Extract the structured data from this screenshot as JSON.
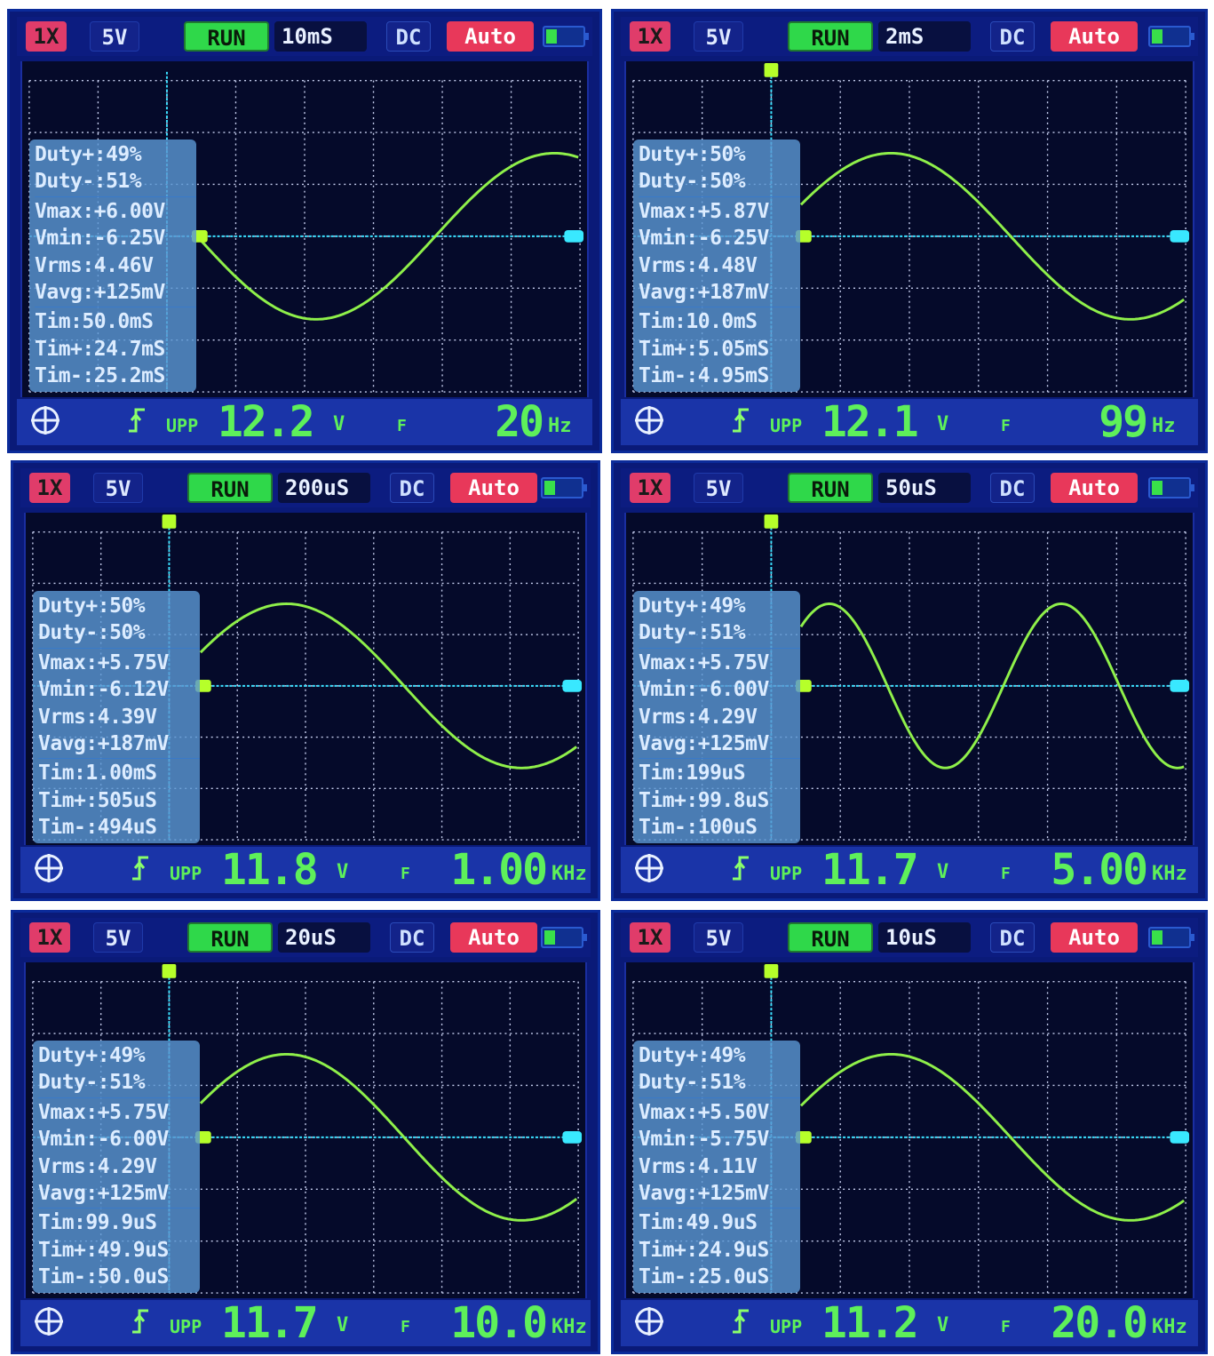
{
  "colors": {
    "trace": "#8ff04a",
    "grid": "#c8d0f0",
    "crosshair": "#39e0ff",
    "marker_left": "#b6ff2a",
    "marker_right": "#39e8ff",
    "top_marker": "#b6ff2a"
  },
  "icons": {
    "position": "crosshair-target-icon",
    "trigger": "rising-edge-trigger-icon",
    "battery": "battery-icon"
  },
  "screens": [
    {
      "probe": "1X",
      "volts_div": "5V",
      "run": "RUN",
      "time_div": "10mS",
      "coupling": "DC",
      "mode": "Auto",
      "measurements": [
        "Duty+:49%",
        "Duty-:51%",
        "Vmax:+6.00V",
        "Vmin:-6.25V",
        "Vrms:4.46V",
        "Vavg:+125mV",
        "Tim:50.0mS",
        "Tim+:24.7mS",
        "Tim-:25.2mS"
      ],
      "upp_label": "UPP",
      "upp_value": "12.2",
      "upp_unit": "V",
      "f_label": "F",
      "f_value": "20",
      "f_unit": "Hz",
      "wave": {
        "cycles_visible": 0.8,
        "phase": 0.0,
        "top_marker": false
      }
    },
    {
      "probe": "1X",
      "volts_div": "5V",
      "run": "RUN",
      "time_div": "2mS",
      "coupling": "DC",
      "mode": "Auto",
      "measurements": [
        "Duty+:50%",
        "Duty-:50%",
        "Vmax:+5.87V",
        "Vmin:-6.25V",
        "Vrms:4.48V",
        "Vavg:+187mV",
        "Tim:10.0mS",
        "Tim+:5.05mS",
        "Tim-:4.95mS"
      ],
      "upp_label": "UPP",
      "upp_value": "12.1",
      "upp_unit": "V",
      "f_label": "F",
      "f_value": "99",
      "f_unit": "Hz",
      "wave": {
        "cycles_visible": 0.8,
        "phase": 0.0,
        "top_marker": true
      }
    },
    {
      "probe": "1X",
      "volts_div": "5V",
      "run": "RUN",
      "time_div": "200uS",
      "coupling": "DC",
      "mode": "Auto",
      "measurements": [
        "Duty+:50%",
        "Duty-:50%",
        "Vmax:+5.75V",
        "Vmin:-6.12V",
        "Vrms:4.39V",
        "Vavg:+187mV",
        "Tim:1.00mS",
        "Tim+:505uS",
        "Tim-:494uS"
      ],
      "upp_label": "UPP",
      "upp_value": "11.8",
      "upp_unit": "V",
      "f_label": "F",
      "f_value": "1.00",
      "f_unit": "KHz",
      "wave": {
        "cycles_visible": 0.8,
        "phase": 0.0,
        "top_marker": true
      }
    },
    {
      "probe": "1X",
      "volts_div": "5V",
      "run": "RUN",
      "time_div": "50uS",
      "coupling": "DC",
      "mode": "Auto",
      "measurements": [
        "Duty+:49%",
        "Duty-:51%",
        "Vmax:+5.75V",
        "Vmin:-6.00V",
        "Vrms:4.29V",
        "Vavg:+125mV",
        "Tim:199uS",
        "Tim+:99.8uS",
        "Tim-:100uS"
      ],
      "upp_label": "UPP",
      "upp_value": "11.7",
      "upp_unit": "V",
      "f_label": "F",
      "f_value": "5.00",
      "f_unit": "KHz",
      "wave": {
        "cycles_visible": 1.65,
        "phase": 0.0,
        "top_marker": true
      }
    },
    {
      "probe": "1X",
      "volts_div": "5V",
      "run": "RUN",
      "time_div": "20uS",
      "coupling": "DC",
      "mode": "Auto",
      "measurements": [
        "Duty+:49%",
        "Duty-:51%",
        "Vmax:+5.75V",
        "Vmin:-6.00V",
        "Vrms:4.29V",
        "Vavg:+125mV",
        "Tim:99.9uS",
        "Tim+:49.9uS",
        "Tim-:50.0uS"
      ],
      "upp_label": "UPP",
      "upp_value": "11.7",
      "upp_unit": "V",
      "f_label": "F",
      "f_value": "10.0",
      "f_unit": "KHz",
      "wave": {
        "cycles_visible": 0.8,
        "phase": 0.0,
        "top_marker": true
      }
    },
    {
      "probe": "1X",
      "volts_div": "5V",
      "run": "RUN",
      "time_div": "10uS",
      "coupling": "DC",
      "mode": "Auto",
      "measurements": [
        "Duty+:49%",
        "Duty-:51%",
        "Vmax:+5.50V",
        "Vmin:-5.75V",
        "Vrms:4.11V",
        "Vavg:+125mV",
        "Tim:49.9uS",
        "Tim+:24.9uS",
        "Tim-:25.0uS"
      ],
      "upp_label": "UPP",
      "upp_value": "11.2",
      "upp_unit": "V",
      "f_label": "F",
      "f_value": "20.0",
      "f_unit": "KHz",
      "wave": {
        "cycles_visible": 0.8,
        "phase": 0.0,
        "top_marker": true
      }
    }
  ]
}
